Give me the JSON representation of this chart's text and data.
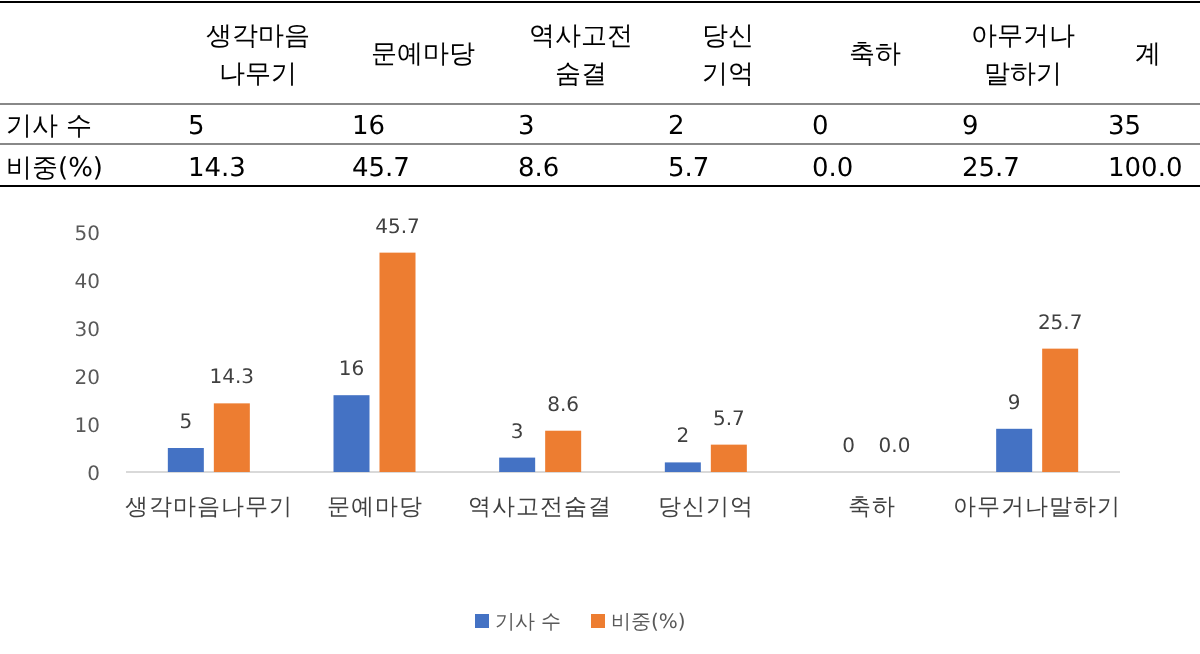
{
  "chart_data": {
    "type": "bar",
    "categories": [
      "생각마음나무기",
      "문예마당",
      "역사고전숨결",
      "당신기억",
      "축하",
      "아무거나말하기"
    ],
    "series": [
      {
        "name": "기사 수",
        "color": "#4472c4",
        "values": [
          5,
          16,
          3,
          2,
          0,
          9
        ],
        "value_labels": [
          "5",
          "16",
          "3",
          "2",
          "0",
          "9"
        ]
      },
      {
        "name": "비중(%)",
        "color": "#ed7d31",
        "values": [
          14.3,
          45.7,
          8.6,
          5.7,
          0.0,
          25.7
        ],
        "value_labels": [
          "14.3",
          "45.7",
          "8.6",
          "5.7",
          "0.0",
          "25.7"
        ]
      }
    ],
    "annotations": [
      "생각마음\n나무기",
      "문예마당",
      "역사고전\n숨결",
      "당신\n기억",
      "축하",
      "아무거나\n말하기",
      "계",
      "35",
      "100.0"
    ],
    "ylim": [
      0,
      50
    ],
    "yticks": [
      0,
      10,
      20,
      30,
      40,
      50
    ],
    "grid": false,
    "legend": "bottom"
  }
}
